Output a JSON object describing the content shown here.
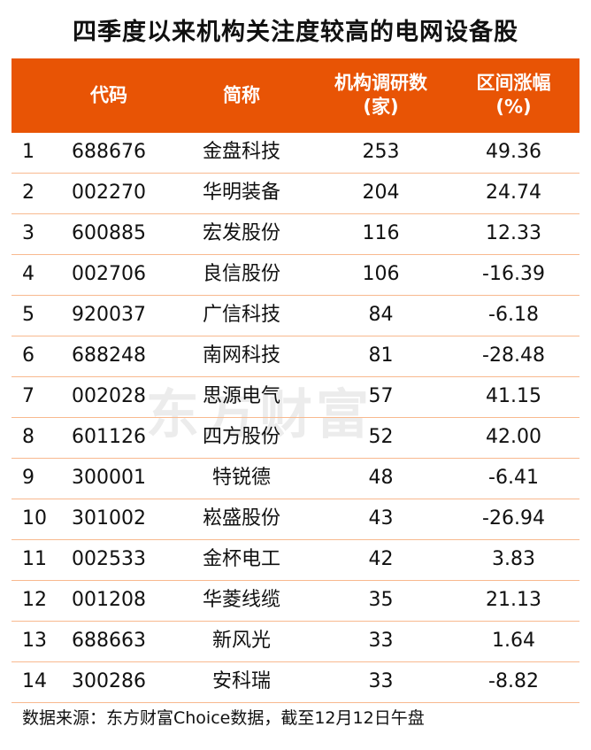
{
  "title": "四季度以来机构关注度较高的电网设备股",
  "watermark": "东方财富",
  "source": "数据来源：东方财富Choice数据，截至12月12日午盘",
  "colors": {
    "header_bg": "#e85405",
    "row_divider": "#f8b98f"
  },
  "chart_data": {
    "type": "table",
    "columns": [
      "",
      "代码",
      "简称",
      "机构调研数\n(家)",
      "区间涨幅\n(%)"
    ],
    "rows": [
      [
        "1",
        "688676",
        "金盘科技",
        "253",
        "49.36"
      ],
      [
        "2",
        "002270",
        "华明装备",
        "204",
        "24.74"
      ],
      [
        "3",
        "600885",
        "宏发股份",
        "116",
        "12.33"
      ],
      [
        "4",
        "002706",
        "良信股份",
        "106",
        "-16.39"
      ],
      [
        "5",
        "920037",
        "广信科技",
        "84",
        "-6.18"
      ],
      [
        "6",
        "688248",
        "南网科技",
        "81",
        "-28.48"
      ],
      [
        "7",
        "002028",
        "思源电气",
        "57",
        "41.15"
      ],
      [
        "8",
        "601126",
        "四方股份",
        "52",
        "42.00"
      ],
      [
        "9",
        "300001",
        "特锐德",
        "48",
        "-6.41"
      ],
      [
        "10",
        "301002",
        "崧盛股份",
        "43",
        "-26.94"
      ],
      [
        "11",
        "002533",
        "金杯电工",
        "42",
        "3.83"
      ],
      [
        "12",
        "001208",
        "华菱线缆",
        "35",
        "21.13"
      ],
      [
        "13",
        "688663",
        "新风光",
        "33",
        "1.64"
      ],
      [
        "14",
        "300286",
        "安科瑞",
        "33",
        "-8.82"
      ]
    ]
  }
}
